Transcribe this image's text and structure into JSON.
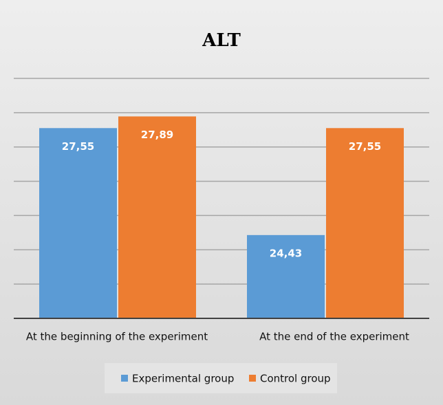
{
  "chart_data": {
    "type": "bar",
    "title": "ALT",
    "categories": [
      "At the beginning of the experiment",
      "At the end of the experiment"
    ],
    "series": [
      {
        "name": "Experimental group",
        "color": "#5b9bd5",
        "values": [
          27.55,
          24.43
        ],
        "value_labels": [
          "27,55",
          "24,43"
        ]
      },
      {
        "name": "Control group",
        "color": "#ed7d31",
        "values": [
          27.89,
          27.55
        ],
        "value_labels": [
          "27,89",
          "27,55"
        ]
      }
    ],
    "ylim": [
      22,
      29
    ],
    "yticks": [
      22,
      23,
      24,
      25,
      26,
      27,
      28,
      29
    ],
    "grid": true,
    "legend": "bottom"
  }
}
